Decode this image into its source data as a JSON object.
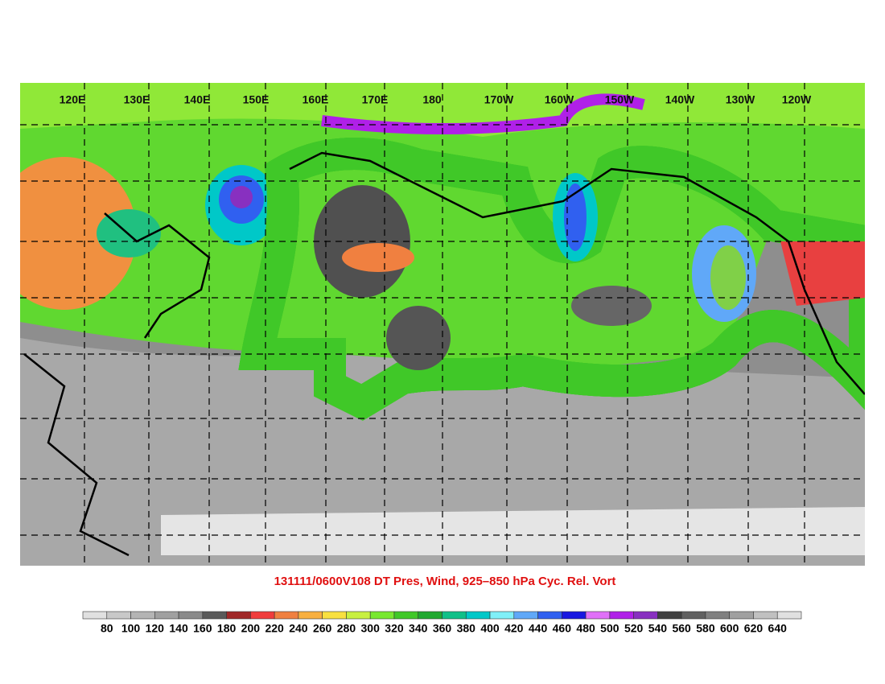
{
  "map": {
    "title": "131111/0600V108 DT Pres, Wind, 925–850 hPa Cyc. Rel. Vort",
    "longitude_labels": [
      "120E",
      "130E",
      "140E",
      "150E",
      "160E",
      "170E",
      "180",
      "170W",
      "160W",
      "150W",
      "140W",
      "130W",
      "120W"
    ],
    "colorbar": {
      "labels": [
        80,
        100,
        120,
        140,
        160,
        180,
        200,
        220,
        240,
        260,
        280,
        300,
        320,
        340,
        360,
        380,
        400,
        420,
        440,
        460,
        480,
        500,
        520,
        540,
        560,
        580,
        600,
        620,
        640
      ],
      "colors": [
        "#e0e0e0",
        "#c8c8c8",
        "#b4b4b4",
        "#a0a0a0",
        "#8a8a8a",
        "#5a5a5a",
        "#a02828",
        "#f03c3c",
        "#f08040",
        "#f8b040",
        "#f8e040",
        "#c8f040",
        "#78e830",
        "#40c828",
        "#20a830",
        "#10c088",
        "#00c8c8",
        "#80f0f8",
        "#60a8f8",
        "#3060f0",
        "#1818e0",
        "#e070f8",
        "#b020e8",
        "#8830c0",
        "#404040",
        "#606060",
        "#808080",
        "#a0a0a0",
        "#c0c0c0",
        "#e0e0e0"
      ]
    }
  }
}
